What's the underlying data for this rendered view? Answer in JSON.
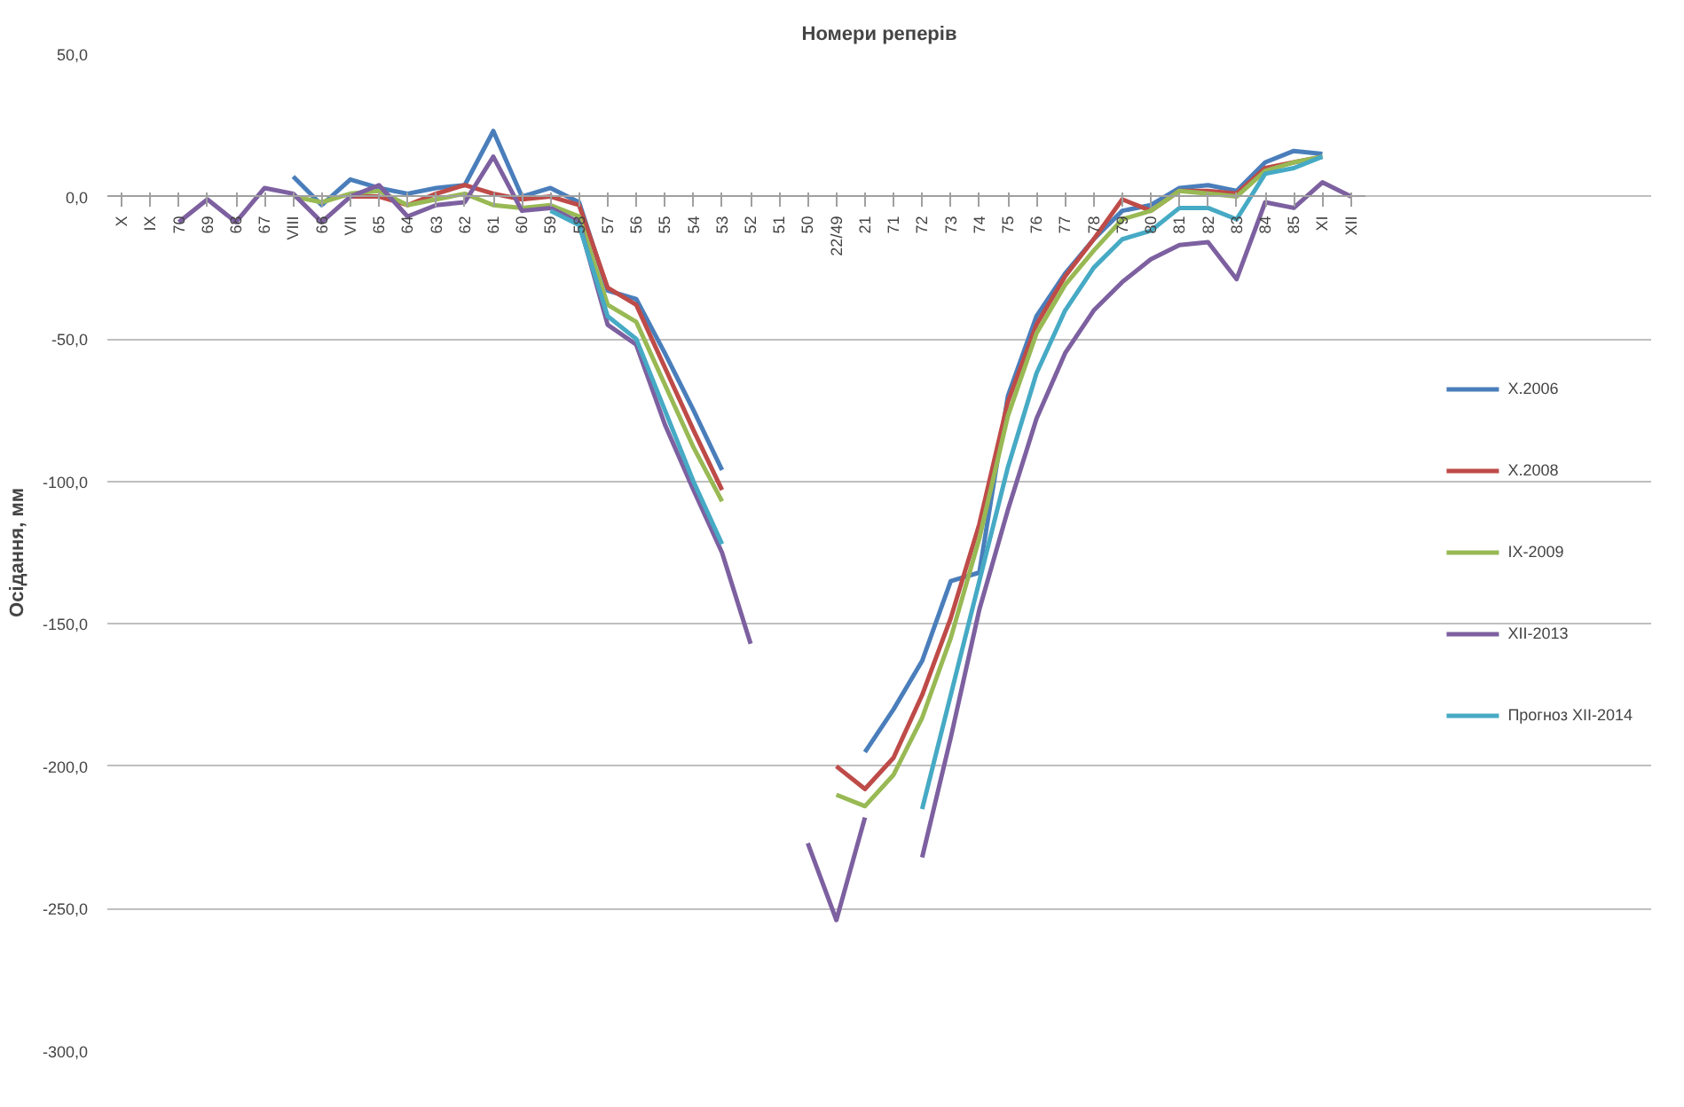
{
  "chart_data": {
    "type": "line",
    "title": "Номери реперів",
    "ylabel": "Осідання, мм",
    "categories": [
      "X",
      "IX",
      "70",
      "69",
      "68",
      "67",
      "VIII",
      "66",
      "VII",
      "65",
      "64",
      "63",
      "62",
      "61",
      "60",
      "59",
      "58",
      "57",
      "56",
      "55",
      "54",
      "53",
      "52",
      "51",
      "50",
      "22/49",
      "21",
      "71",
      "72",
      "73",
      "74",
      "75",
      "76",
      "77",
      "78",
      "79",
      "80",
      "81",
      "82",
      "83",
      "84",
      "85",
      "XI",
      "XII"
    ],
    "ylim": [
      -300,
      50
    ],
    "yticks": [
      {
        "value": 50,
        "label": "50,0"
      },
      {
        "value": 0,
        "label": "0,0"
      },
      {
        "value": -50,
        "label": "-50,0"
      },
      {
        "value": -100,
        "label": "-100,0"
      },
      {
        "value": -150,
        "label": "-150,0"
      },
      {
        "value": -200,
        "label": "-200,0"
      },
      {
        "value": -250,
        "label": "-250,0"
      },
      {
        "value": -300,
        "label": "-300,0"
      }
    ],
    "grid": "y",
    "legend": "right",
    "marker": "none",
    "line_style": "solid",
    "series": [
      {
        "name": "X.2006",
        "color": "#4a7ebb",
        "values": [
          null,
          null,
          null,
          null,
          null,
          null,
          7,
          -3,
          6,
          3,
          1,
          3,
          4,
          23,
          0,
          3,
          -2,
          -33,
          -36,
          -55,
          -75,
          -96,
          null,
          null,
          null,
          null,
          -195,
          -180,
          -163,
          -135,
          -132,
          -70,
          -42,
          -27,
          -15,
          -5,
          -3,
          3,
          4,
          2,
          12,
          16,
          15,
          null
        ]
      },
      {
        "name": "X.2008",
        "color": "#be4b48",
        "values": [
          null,
          null,
          null,
          null,
          null,
          null,
          null,
          null,
          0,
          0,
          -3,
          1,
          4,
          1,
          -1,
          0,
          -3,
          -32,
          -38,
          -60,
          -82,
          -103,
          null,
          null,
          null,
          -200,
          -208,
          -197,
          -175,
          -148,
          -115,
          -72,
          -45,
          -28,
          -15,
          -1,
          -5,
          2,
          2,
          1,
          10,
          12,
          14,
          null
        ]
      },
      {
        "name": "IX-2009",
        "color": "#98b954",
        "values": [
          null,
          null,
          null,
          null,
          null,
          null,
          0,
          -2,
          1,
          2,
          -3,
          -1,
          1,
          -3,
          -4,
          -3,
          -7,
          -38,
          -44,
          -66,
          -88,
          -107,
          null,
          null,
          null,
          -210,
          -214,
          -203,
          -183,
          -155,
          -120,
          -77,
          -48,
          -31,
          -19,
          -8,
          -5,
          2,
          1,
          0,
          9,
          12,
          14,
          null
        ]
      },
      {
        "name": "XII-2013",
        "color": "#7d60a0",
        "values": [
          null,
          null,
          -9,
          -1,
          -9,
          3,
          1,
          -9,
          0,
          4,
          -7,
          -3,
          -2,
          14,
          -5,
          -4,
          -9,
          -45,
          -52,
          -80,
          -103,
          -125,
          -157,
          null,
          -227,
          -254,
          -218,
          null,
          -232,
          -190,
          -145,
          -110,
          -78,
          -55,
          -40,
          -30,
          -22,
          -17,
          -16,
          -29,
          -2,
          -4,
          5,
          0
        ]
      },
      {
        "name": "Прогноз XII-2014",
        "color": "#46aac5",
        "values": [
          null,
          null,
          null,
          null,
          null,
          null,
          null,
          null,
          null,
          null,
          null,
          null,
          null,
          null,
          null,
          -5,
          -10,
          -42,
          -50,
          -75,
          -100,
          -122,
          null,
          null,
          null,
          null,
          null,
          null,
          -215,
          -175,
          -135,
          -95,
          -62,
          -40,
          -25,
          -15,
          -12,
          -4,
          -4,
          -8,
          8,
          10,
          14,
          null
        ]
      }
    ]
  }
}
